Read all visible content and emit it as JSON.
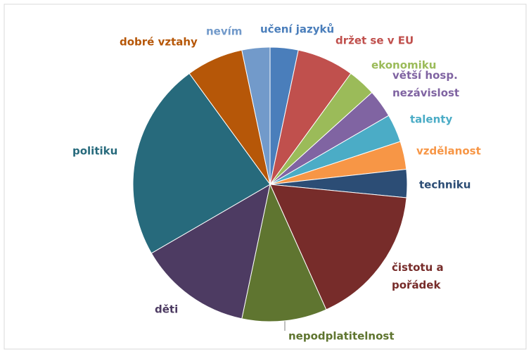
{
  "chart_data": {
    "type": "pie",
    "categories": [
      "učení jazyků",
      "držet se v EU",
      "ekonomiku",
      "větší hosp. nezávislost",
      "talenty",
      "vzdělanost",
      "techniku",
      "čistotu a pořádek",
      "nepodplatitelnost",
      "děti",
      "politiku",
      "dobré vztahy",
      "nevím"
    ],
    "values": [
      3.3,
      6.7,
      3.3,
      3.3,
      3.3,
      3.3,
      3.3,
      16.7,
      10,
      13.3,
      23.3,
      6.7,
      3.3
    ],
    "colors": [
      "#4a7ebb",
      "#c0504d",
      "#9bbb59",
      "#8064a2",
      "#4bacc6",
      "#f79646",
      "#2c4d75",
      "#772c2a",
      "#5f7530",
      "#4d3b62",
      "#276a7c",
      "#b65708",
      "#729aca"
    ]
  }
}
